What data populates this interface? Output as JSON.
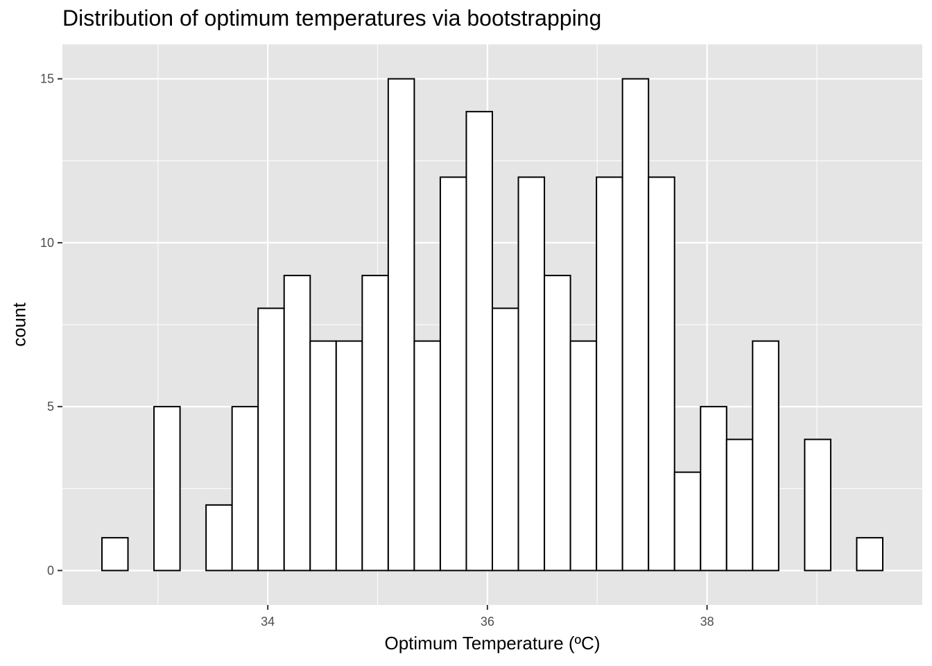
{
  "chart_data": {
    "type": "bar",
    "title": "Distribution of optimum temperatures via bootstrapping",
    "xlabel": "Optimum Temperature (ºC)",
    "ylabel": "count",
    "bin_width": 0.2368,
    "bins": [
      {
        "start": 32.49,
        "end": 32.727,
        "count": 1
      },
      {
        "start": 32.727,
        "end": 32.964,
        "count": 0
      },
      {
        "start": 32.964,
        "end": 33.201,
        "count": 5
      },
      {
        "start": 33.201,
        "end": 33.438,
        "count": 0
      },
      {
        "start": 33.438,
        "end": 33.675,
        "count": 2
      },
      {
        "start": 33.675,
        "end": 33.912,
        "count": 5
      },
      {
        "start": 33.912,
        "end": 34.149,
        "count": 8
      },
      {
        "start": 34.149,
        "end": 34.386,
        "count": 9
      },
      {
        "start": 34.386,
        "end": 34.623,
        "count": 7
      },
      {
        "start": 34.623,
        "end": 34.86,
        "count": 7
      },
      {
        "start": 34.86,
        "end": 35.097,
        "count": 9
      },
      {
        "start": 35.097,
        "end": 35.334,
        "count": 15
      },
      {
        "start": 35.334,
        "end": 35.571,
        "count": 7
      },
      {
        "start": 35.571,
        "end": 35.808,
        "count": 12
      },
      {
        "start": 35.808,
        "end": 36.045,
        "count": 14
      },
      {
        "start": 36.045,
        "end": 36.282,
        "count": 8
      },
      {
        "start": 36.282,
        "end": 36.519,
        "count": 12
      },
      {
        "start": 36.519,
        "end": 36.756,
        "count": 9
      },
      {
        "start": 36.756,
        "end": 36.993,
        "count": 7
      },
      {
        "start": 36.993,
        "end": 37.23,
        "count": 12
      },
      {
        "start": 37.23,
        "end": 37.467,
        "count": 15
      },
      {
        "start": 37.467,
        "end": 37.704,
        "count": 12
      },
      {
        "start": 37.704,
        "end": 37.941,
        "count": 3
      },
      {
        "start": 37.941,
        "end": 38.178,
        "count": 5
      },
      {
        "start": 38.178,
        "end": 38.415,
        "count": 4
      },
      {
        "start": 38.415,
        "end": 38.652,
        "count": 7
      },
      {
        "start": 38.652,
        "end": 38.889,
        "count": 0
      },
      {
        "start": 38.889,
        "end": 39.126,
        "count": 4
      },
      {
        "start": 39.126,
        "end": 39.363,
        "count": 0
      },
      {
        "start": 39.363,
        "end": 39.6,
        "count": 1
      }
    ],
    "xlim": [
      32.13,
      39.96
    ],
    "ylim": [
      -1.05,
      16.05
    ],
    "x_ticks": [
      34,
      36,
      38
    ],
    "x_tick_labels": [
      "34",
      "36",
      "38"
    ],
    "y_ticks": [
      0,
      5,
      10,
      15
    ],
    "y_tick_labels": [
      "0",
      "5",
      "10",
      "15"
    ],
    "x_minor_ticks": [
      33,
      35,
      37,
      39
    ],
    "y_minor_ticks": [
      2.5,
      7.5,
      12.5
    ],
    "grid": true,
    "legend": "none",
    "colors": {
      "panel_background": "#e5e5e5",
      "grid_major": "#ffffff",
      "bar_fill": "#ffffff",
      "bar_outline": "#000000",
      "tick_text": "#4d4d4d",
      "tick_mark": "#333333"
    }
  }
}
